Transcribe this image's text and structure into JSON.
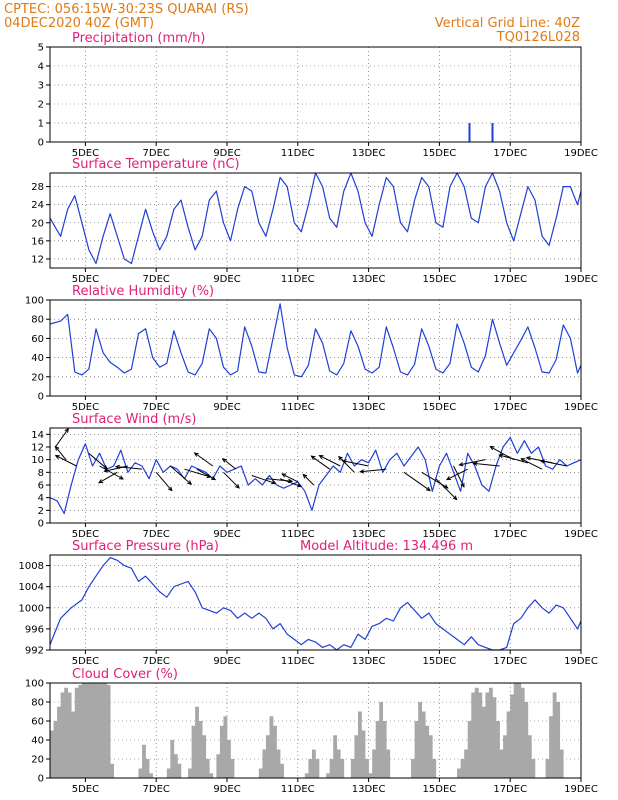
{
  "header": {
    "line1_left": "CPTEC:   056:15W-30:23S   QUARAI (RS)",
    "line2_left": "04DEC2020 40Z (GMT)",
    "line1_right": "Vertical Grid Line: 40Z",
    "line2_right": "TQ0126L028"
  },
  "colors": {
    "header": "#e07a12",
    "title": "#e0207a",
    "series": "#1f3fd6",
    "cloud": "#a8a8a8",
    "arrow": "#000000"
  },
  "x_axis": {
    "range_days": [
      4.0,
      19.0
    ],
    "ticks": [
      {
        "day": 5,
        "label": "5DEC"
      },
      {
        "day": 7,
        "label": "7DEC"
      },
      {
        "day": 9,
        "label": "9DEC"
      },
      {
        "day": 11,
        "label": "11DEC"
      },
      {
        "day": 13,
        "label": "13DEC"
      },
      {
        "day": 15,
        "label": "15DEC"
      },
      {
        "day": 17,
        "label": "17DEC"
      },
      {
        "day": 19,
        "label": "19DEC"
      }
    ]
  },
  "chart_data": [
    {
      "type": "bar",
      "title": "Precipitation (mm/h)",
      "ylim": [
        0,
        5
      ],
      "yticks": [
        0,
        1,
        2,
        3,
        4,
        5
      ],
      "x": [
        15.85,
        16.5
      ],
      "values": [
        1.0,
        1.0
      ]
    },
    {
      "type": "line",
      "title": "Surface Temperature (nC)",
      "ylim": [
        10,
        31
      ],
      "yticks": [
        12,
        16,
        20,
        24,
        28
      ],
      "x": [
        4.0,
        4.3,
        4.5,
        4.7,
        4.9,
        5.1,
        5.3,
        5.5,
        5.7,
        5.9,
        6.1,
        6.3,
        6.5,
        6.7,
        6.9,
        7.1,
        7.3,
        7.5,
        7.7,
        7.9,
        8.1,
        8.3,
        8.5,
        8.7,
        8.9,
        9.1,
        9.3,
        9.5,
        9.7,
        9.9,
        10.1,
        10.3,
        10.5,
        10.7,
        10.9,
        11.1,
        11.3,
        11.5,
        11.7,
        11.9,
        12.1,
        12.3,
        12.5,
        12.7,
        12.9,
        13.1,
        13.3,
        13.5,
        13.7,
        13.9,
        14.1,
        14.3,
        14.5,
        14.7,
        14.9,
        15.1,
        15.3,
        15.5,
        15.7,
        15.9,
        16.1,
        16.3,
        16.5,
        16.7,
        16.9,
        17.1,
        17.3,
        17.5,
        17.7,
        17.9,
        18.1,
        18.3,
        18.5,
        18.7,
        18.9,
        19.0
      ],
      "values": [
        21,
        17,
        23,
        26,
        20,
        14,
        11,
        17,
        22,
        17,
        12,
        11,
        17,
        23,
        18,
        14,
        17,
        23,
        25,
        19,
        14,
        17,
        25,
        27,
        20,
        16,
        23,
        28,
        27,
        20,
        17,
        23,
        30,
        28,
        20,
        18,
        24,
        31,
        28,
        21,
        19,
        27,
        31,
        27,
        20,
        17,
        24,
        30,
        28,
        20,
        18,
        25,
        30,
        28,
        20,
        19,
        28,
        31,
        28,
        21,
        20,
        28,
        31,
        27,
        20,
        16,
        22,
        28,
        25,
        17,
        15,
        21,
        28,
        28,
        24,
        27
      ]
    },
    {
      "type": "line",
      "title": "Relative Humidity (%)",
      "ylim": [
        0,
        100
      ],
      "yticks": [
        0,
        20,
        40,
        60,
        80,
        100
      ],
      "x": [
        4.0,
        4.3,
        4.5,
        4.7,
        4.9,
        5.1,
        5.3,
        5.5,
        5.7,
        5.9,
        6.1,
        6.3,
        6.5,
        6.7,
        6.9,
        7.1,
        7.3,
        7.5,
        7.7,
        7.9,
        8.1,
        8.3,
        8.5,
        8.7,
        8.9,
        9.1,
        9.3,
        9.5,
        9.7,
        9.9,
        10.1,
        10.3,
        10.5,
        10.7,
        10.9,
        11.1,
        11.3,
        11.5,
        11.7,
        11.9,
        12.1,
        12.3,
        12.5,
        12.7,
        12.9,
        13.1,
        13.3,
        13.5,
        13.7,
        13.9,
        14.1,
        14.3,
        14.5,
        14.7,
        14.9,
        15.1,
        15.3,
        15.5,
        15.7,
        15.9,
        16.1,
        16.3,
        16.5,
        16.7,
        16.9,
        17.1,
        17.3,
        17.5,
        17.7,
        17.9,
        18.1,
        18.3,
        18.5,
        18.7,
        18.9,
        19.0
      ],
      "values": [
        75,
        78,
        85,
        25,
        22,
        28,
        70,
        45,
        35,
        30,
        24,
        28,
        65,
        70,
        40,
        30,
        34,
        68,
        45,
        25,
        22,
        34,
        70,
        60,
        30,
        22,
        26,
        72,
        52,
        25,
        24,
        60,
        96,
        50,
        22,
        20,
        32,
        70,
        55,
        26,
        22,
        34,
        68,
        52,
        28,
        24,
        30,
        72,
        50,
        25,
        22,
        33,
        70,
        52,
        28,
        24,
        34,
        75,
        55,
        30,
        25,
        42,
        80,
        55,
        32,
        45,
        58,
        72,
        50,
        25,
        24,
        38,
        74,
        60,
        24,
        32
      ]
    },
    {
      "type": "line",
      "title": "Surface Wind (m/s)",
      "ylim": [
        0,
        15
      ],
      "yticks": [
        0,
        2,
        4,
        6,
        8,
        10,
        12,
        14
      ],
      "x": [
        4.0,
        4.2,
        4.4,
        4.6,
        4.8,
        5.0,
        5.2,
        5.4,
        5.6,
        5.8,
        6.0,
        6.2,
        6.4,
        6.6,
        6.8,
        7.0,
        7.2,
        7.4,
        7.6,
        7.8,
        8.0,
        8.2,
        8.4,
        8.6,
        8.8,
        9.0,
        9.2,
        9.4,
        9.6,
        9.8,
        10.0,
        10.2,
        10.4,
        10.6,
        10.8,
        11.0,
        11.2,
        11.4,
        11.6,
        11.8,
        12.0,
        12.2,
        12.4,
        12.6,
        12.8,
        13.0,
        13.2,
        13.4,
        13.6,
        13.8,
        14.0,
        14.2,
        14.4,
        14.6,
        14.8,
        15.0,
        15.2,
        15.4,
        15.6,
        15.8,
        16.0,
        16.2,
        16.4,
        16.6,
        16.8,
        17.0,
        17.2,
        17.4,
        17.6,
        17.8,
        18.0,
        18.2,
        18.4,
        18.6,
        18.8,
        19.0
      ],
      "values": [
        4,
        3.5,
        1.5,
        6,
        10,
        12.5,
        9,
        11,
        8.5,
        9,
        11.5,
        8,
        9.5,
        9,
        7,
        10,
        8,
        9,
        8.5,
        7,
        9,
        8.5,
        8,
        7,
        9,
        8,
        8.5,
        9,
        6,
        7,
        6,
        7.5,
        6,
        5.5,
        6,
        6.5,
        5,
        2,
        6,
        7.5,
        9,
        8,
        11,
        9,
        10,
        9.5,
        11.5,
        8,
        10,
        11,
        9,
        10.5,
        12,
        10,
        5,
        9,
        11,
        8,
        5,
        11,
        9,
        6,
        5,
        9,
        12,
        13.5,
        11,
        13,
        11,
        12,
        9,
        8.5,
        10,
        9,
        9.5,
        10
      ]
    },
    {
      "type": "line",
      "title": "Surface Pressure (hPa)",
      "subtitle": "Model Altitude: 134.496 m",
      "ylim": [
        992,
        1010
      ],
      "yticks": [
        992,
        996,
        1000,
        1004,
        1008
      ],
      "x": [
        4.0,
        4.3,
        4.6,
        4.9,
        5.1,
        5.3,
        5.5,
        5.7,
        5.9,
        6.1,
        6.3,
        6.5,
        6.7,
        6.9,
        7.1,
        7.3,
        7.5,
        7.7,
        7.9,
        8.1,
        8.3,
        8.5,
        8.7,
        8.9,
        9.1,
        9.3,
        9.5,
        9.7,
        9.9,
        10.1,
        10.3,
        10.5,
        10.7,
        10.9,
        11.1,
        11.3,
        11.5,
        11.7,
        11.9,
        12.1,
        12.3,
        12.5,
        12.7,
        12.9,
        13.1,
        13.3,
        13.5,
        13.7,
        13.9,
        14.1,
        14.3,
        14.5,
        14.7,
        14.9,
        15.1,
        15.3,
        15.5,
        15.7,
        15.9,
        16.1,
        16.3,
        16.5,
        16.7,
        16.9,
        17.1,
        17.3,
        17.5,
        17.7,
        17.9,
        18.1,
        18.3,
        18.5,
        18.7,
        18.9,
        19.0
      ],
      "values": [
        993,
        998,
        1000,
        1001.5,
        1004,
        1006,
        1008,
        1009.5,
        1009,
        1008,
        1007.5,
        1005,
        1006,
        1004.5,
        1003,
        1002,
        1004,
        1004.5,
        1005,
        1003,
        1000,
        999.5,
        999,
        1000,
        999.5,
        998,
        999,
        998,
        999,
        998,
        996,
        997,
        995,
        994,
        993,
        994,
        993.5,
        992.5,
        993,
        992,
        993,
        992.5,
        995,
        994,
        996.5,
        997,
        998,
        997.5,
        1000,
        1001,
        999.5,
        998,
        999,
        997,
        996,
        995,
        994,
        993,
        994.5,
        993,
        992.5,
        992,
        991.5,
        992.5,
        997,
        998,
        1000,
        1001.5,
        1000,
        999,
        1000.5,
        1000,
        998,
        996,
        997.5
      ]
    },
    {
      "type": "bar",
      "title": "Cloud Cover (%)",
      "ylim": [
        0,
        100
      ],
      "yticks": [
        0,
        20,
        40,
        60,
        80,
        100
      ],
      "x": [
        4.0,
        4.1,
        4.2,
        4.3,
        4.4,
        4.5,
        4.6,
        4.7,
        4.8,
        4.9,
        5.0,
        5.1,
        5.2,
        5.3,
        5.4,
        5.5,
        5.6,
        5.7,
        5.8,
        5.9,
        6.0,
        6.1,
        6.2,
        6.3,
        6.4,
        6.5,
        6.6,
        6.7,
        6.8,
        6.9,
        7.0,
        7.1,
        7.2,
        7.3,
        7.4,
        7.5,
        7.6,
        7.7,
        7.8,
        7.9,
        8.0,
        8.1,
        8.2,
        8.3,
        8.4,
        8.5,
        8.6,
        8.7,
        8.8,
        8.9,
        9.0,
        9.1,
        9.2,
        9.3,
        9.4,
        9.5,
        9.6,
        9.7,
        9.8,
        9.9,
        10.0,
        10.1,
        10.2,
        10.3,
        10.4,
        10.5,
        10.6,
        10.7,
        10.8,
        10.9,
        11.0,
        11.1,
        11.2,
        11.3,
        11.4,
        11.5,
        11.6,
        11.7,
        11.8,
        11.9,
        12.0,
        12.1,
        12.2,
        12.3,
        12.4,
        12.5,
        12.6,
        12.7,
        12.8,
        12.9,
        13.0,
        13.1,
        13.2,
        13.3,
        13.4,
        13.5,
        13.6,
        13.7,
        13.8,
        13.9,
        14.0,
        14.1,
        14.2,
        14.3,
        14.4,
        14.5,
        14.6,
        14.7,
        14.8,
        14.9,
        15.0,
        15.1,
        15.2,
        15.3,
        15.4,
        15.5,
        15.6,
        15.7,
        15.8,
        15.9,
        16.0,
        16.1,
        16.2,
        16.3,
        16.4,
        16.5,
        16.6,
        16.7,
        16.8,
        16.9,
        17.0,
        17.1,
        17.2,
        17.3,
        17.4,
        17.5,
        17.6,
        17.7,
        17.8,
        17.9,
        18.0,
        18.1,
        18.2,
        18.3,
        18.4,
        18.5,
        18.6,
        18.7,
        18.8,
        18.9
      ],
      "values": [
        50,
        60,
        75,
        90,
        95,
        90,
        70,
        95,
        98,
        100,
        100,
        100,
        100,
        100,
        100,
        100,
        98,
        15,
        0,
        0,
        0,
        0,
        0,
        0,
        0,
        10,
        35,
        20,
        5,
        0,
        0,
        0,
        0,
        10,
        40,
        25,
        15,
        0,
        0,
        10,
        55,
        75,
        60,
        45,
        20,
        5,
        0,
        25,
        55,
        65,
        40,
        20,
        0,
        0,
        0,
        0,
        0,
        0,
        0,
        10,
        30,
        45,
        65,
        55,
        30,
        15,
        0,
        0,
        0,
        0,
        0,
        0,
        5,
        20,
        30,
        20,
        0,
        0,
        5,
        20,
        45,
        30,
        20,
        0,
        0,
        20,
        45,
        70,
        50,
        20,
        5,
        30,
        60,
        80,
        60,
        30,
        0,
        0,
        0,
        0,
        0,
        0,
        20,
        60,
        80,
        70,
        55,
        45,
        20,
        0,
        0,
        0,
        0,
        0,
        0,
        10,
        20,
        30,
        60,
        90,
        95,
        90,
        75,
        90,
        95,
        85,
        60,
        30,
        45,
        70,
        88,
        100,
        100,
        95,
        80,
        45,
        20,
        0,
        0,
        0,
        20,
        65,
        90,
        80,
        30,
        0,
        0,
        0,
        0,
        0
      ]
    }
  ],
  "wind_arrows": {
    "x": [
      4.15,
      4.45,
      4.75,
      5.1,
      5.4,
      5.9,
      6.2,
      6.6,
      7.0,
      7.4,
      7.8,
      8.15,
      8.6,
      8.9,
      9.25,
      9.7,
      10.1,
      10.5,
      11.0,
      11.45,
      11.9,
      12.2,
      12.6,
      13.0,
      13.5,
      14.0,
      14.5,
      14.9,
      15.4,
      15.8,
      16.3,
      16.7,
      17.1,
      17.5,
      17.9,
      18.2,
      18.6
    ],
    "speed": [
      12,
      10,
      9,
      11,
      9,
      8,
      9,
      8.5,
      8,
      9,
      8.5,
      8.5,
      9,
      8,
      8.5,
      7.5,
      7,
      7,
      6.5,
      6,
      8.5,
      9,
      8,
      9,
      8.5,
      8,
      8,
      7,
      9,
      8.5,
      10,
      9,
      10,
      9.5,
      8.5,
      9.5,
      9
    ],
    "u": [
      2.5,
      -2,
      -4,
      3.5,
      4.5,
      -3.5,
      -4.5,
      -5,
      3,
      4,
      5,
      3.5,
      -3.5,
      3,
      -2.5,
      4.5,
      5,
      4,
      -3,
      -2,
      -3.5,
      -4,
      -3,
      -5,
      -5,
      5,
      5,
      4,
      2,
      -4,
      -5,
      -5,
      -4.5,
      -5.5,
      -4,
      -5,
      -5
    ],
    "v": [
      3.5,
      2.5,
      2,
      -3,
      -2.5,
      -2,
      -1,
      0.5,
      -3.5,
      -3.5,
      -1.5,
      -2,
      2.5,
      -3,
      2,
      -1.5,
      -0.5,
      -1.5,
      1.5,
      2,
      2.5,
      2,
      3,
      1,
      -0.5,
      -3.5,
      -3,
      -4,
      -4,
      -2,
      -1,
      0.5,
      2.5,
      1.5,
      2,
      1,
      1
    ]
  }
}
